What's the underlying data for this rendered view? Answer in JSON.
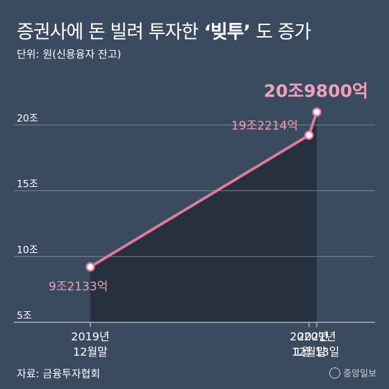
{
  "header": {
    "title_main": "증권사에 돈 빌려 투자한",
    "title_highlight": "‘빚투’",
    "title_end": "도 증가",
    "subtitle": "단위: 원(신용융자 잔고)"
  },
  "footer": {
    "source": "자료: 금융투자협회",
    "logo": "중앙일보"
  },
  "colors": {
    "background": "#3a4a5f",
    "area": "#26303f",
    "line": "#e07a98",
    "label": "#f0a0b8",
    "grid": "#7e8898",
    "text": "#ffffff"
  },
  "chart_data": {
    "type": "area",
    "unit": "조",
    "x": [
      "2019-12-31",
      "2020-12-31",
      "2021-01-13"
    ],
    "x_tick_labels": [
      [
        "2019년",
        "12월말"
      ],
      [
        "2020년",
        "12월말"
      ],
      [
        "2021년",
        "1월 13일"
      ]
    ],
    "values": [
      9.2133,
      19.2214,
      20.98
    ],
    "point_labels": [
      "9조2133억",
      "19조2214억",
      "20조9800억"
    ],
    "ylim": [
      5,
      22
    ],
    "y_ticks": [
      5,
      10,
      15,
      20
    ],
    "y_tick_labels": [
      "5조",
      "10조",
      "15조",
      "20조"
    ],
    "grid": true
  }
}
